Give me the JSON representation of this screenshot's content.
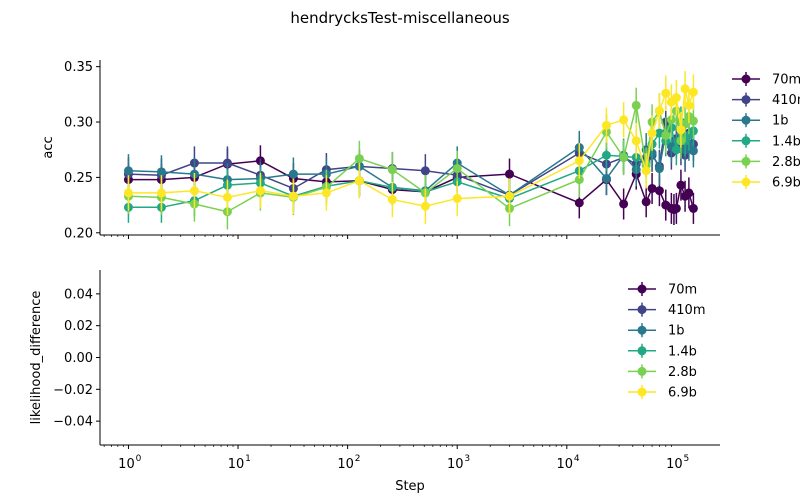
{
  "title": "hendrycksTest-miscellaneous",
  "chart_data": [
    {
      "type": "line",
      "ylabel": "acc",
      "xlabel": "",
      "xscale": "log",
      "xlim": [
        0.55,
        250000
      ],
      "ylim": [
        0.198,
        0.356
      ],
      "yticks": [
        0.2,
        0.25,
        0.3,
        0.35
      ],
      "ytick_labels": [
        "0.20",
        "0.25",
        "0.30",
        "0.35"
      ],
      "legend_position": "right",
      "series": [
        {
          "name": "70m",
          "color": "#440154",
          "x": [
            1,
            2,
            4,
            8,
            16,
            32,
            64,
            128,
            256,
            512,
            1000,
            3000,
            13000,
            23000,
            33000,
            43000,
            53000,
            60000,
            70000,
            80000,
            90000,
            95000,
            100000,
            110000,
            120000,
            130000,
            143000
          ],
          "y": [
            0.248,
            0.248,
            0.25,
            0.262,
            0.265,
            0.249,
            0.246,
            0.247,
            0.239,
            0.237,
            0.25,
            0.253,
            0.227,
            0.248,
            0.226,
            0.253,
            0.228,
            0.24,
            0.238,
            0.225,
            0.222,
            0.221,
            0.222,
            0.243,
            0.233,
            0.236,
            0.222
          ],
          "err": 0.014
        },
        {
          "name": "410m",
          "color": "#414487",
          "x": [
            1,
            2,
            4,
            8,
            16,
            32,
            64,
            128,
            256,
            512,
            1000,
            3000,
            13000,
            23000,
            33000,
            43000,
            53000,
            60000,
            70000,
            80000,
            90000,
            100000,
            110000,
            120000,
            130000,
            143000
          ],
          "y": [
            0.253,
            0.252,
            0.263,
            0.263,
            0.252,
            0.24,
            0.257,
            0.26,
            0.258,
            0.256,
            0.252,
            0.234,
            0.272,
            0.262,
            0.268,
            0.262,
            0.266,
            0.27,
            0.26,
            0.3,
            0.272,
            0.285,
            0.276,
            0.27,
            0.29,
            0.28
          ],
          "err": 0.015
        },
        {
          "name": "1b",
          "color": "#2a788e",
          "x": [
            1,
            2,
            4,
            8,
            16,
            32,
            64,
            128,
            256,
            512,
            1000,
            3000,
            13000,
            23000,
            33000,
            43000,
            53000,
            60000,
            70000,
            80000,
            90000,
            100000,
            110000,
            120000,
            130000,
            143000
          ],
          "y": [
            0.256,
            0.255,
            0.253,
            0.248,
            0.249,
            0.253,
            0.253,
            0.26,
            0.241,
            0.238,
            0.263,
            0.234,
            0.277,
            0.249,
            0.27,
            0.257,
            0.275,
            0.272,
            0.258,
            0.29,
            0.278,
            0.282,
            0.292,
            0.275,
            0.28,
            0.274
          ],
          "err": 0.015
        },
        {
          "name": "1.4b",
          "color": "#22a884",
          "x": [
            1,
            2,
            4,
            8,
            16,
            32,
            64,
            128,
            256,
            512,
            1000,
            3000,
            13000,
            23000,
            33000,
            43000,
            53000,
            60000,
            70000,
            80000,
            90000,
            100000,
            110000,
            120000,
            130000,
            143000
          ],
          "y": [
            0.223,
            0.223,
            0.229,
            0.243,
            0.245,
            0.233,
            0.242,
            0.247,
            0.241,
            0.237,
            0.246,
            0.231,
            0.256,
            0.27,
            0.269,
            0.268,
            0.263,
            0.28,
            0.29,
            0.283,
            0.295,
            0.275,
            0.3,
            0.283,
            0.288,
            0.292
          ],
          "err": 0.014
        },
        {
          "name": "2.8b",
          "color": "#7ad151",
          "x": [
            1,
            2,
            4,
            8,
            16,
            32,
            64,
            128,
            256,
            512,
            1000,
            3000,
            13000,
            23000,
            33000,
            43000,
            53000,
            60000,
            70000,
            80000,
            90000,
            100000,
            110000,
            120000,
            130000,
            143000
          ],
          "y": [
            0.233,
            0.232,
            0.226,
            0.219,
            0.236,
            0.232,
            0.241,
            0.267,
            0.257,
            0.236,
            0.258,
            0.222,
            0.248,
            0.291,
            0.268,
            0.315,
            0.261,
            0.3,
            0.31,
            0.288,
            0.302,
            0.31,
            0.283,
            0.298,
            0.305,
            0.301
          ],
          "err": 0.016
        },
        {
          "name": "6.9b",
          "color": "#fde725",
          "x": [
            1,
            2,
            4,
            8,
            16,
            32,
            64,
            128,
            256,
            512,
            1000,
            3000,
            13000,
            23000,
            33000,
            43000,
            53000,
            60000,
            70000,
            80000,
            90000,
            100000,
            110000,
            120000,
            130000,
            143000
          ],
          "y": [
            0.236,
            0.236,
            0.238,
            0.232,
            0.238,
            0.233,
            0.236,
            0.247,
            0.23,
            0.224,
            0.231,
            0.233,
            0.265,
            0.297,
            0.302,
            0.283,
            0.256,
            0.29,
            0.31,
            0.326,
            0.318,
            0.322,
            0.293,
            0.33,
            0.315,
            0.327
          ],
          "err": 0.016
        }
      ]
    },
    {
      "type": "line",
      "ylabel": "likelihood_difference",
      "xlabel": "Step",
      "xscale": "log",
      "xlim": [
        0.55,
        250000
      ],
      "ylim": [
        -0.055,
        0.055
      ],
      "yticks": [
        -0.04,
        -0.02,
        0.0,
        0.02,
        0.04
      ],
      "ytick_labels": [
        "−0.04",
        "−0.02",
        "0.00",
        "0.02",
        "0.04"
      ],
      "xticks": [
        1,
        10,
        100,
        1000,
        10000,
        100000
      ],
      "xtick_labels": [
        {
          "base": "10",
          "exp": "0"
        },
        {
          "base": "10",
          "exp": "1"
        },
        {
          "base": "10",
          "exp": "2"
        },
        {
          "base": "10",
          "exp": "3"
        },
        {
          "base": "10",
          "exp": "4"
        },
        {
          "base": "10",
          "exp": "5"
        }
      ],
      "legend_position": "upper right",
      "series": [
        {
          "name": "70m",
          "color": "#440154",
          "x": [],
          "y": []
        },
        {
          "name": "410m",
          "color": "#414487",
          "x": [],
          "y": []
        },
        {
          "name": "1b",
          "color": "#2a788e",
          "x": [],
          "y": []
        },
        {
          "name": "1.4b",
          "color": "#22a884",
          "x": [],
          "y": []
        },
        {
          "name": "2.8b",
          "color": "#7ad151",
          "x": [],
          "y": []
        },
        {
          "name": "6.9b",
          "color": "#fde725",
          "x": [],
          "y": []
        }
      ]
    }
  ]
}
